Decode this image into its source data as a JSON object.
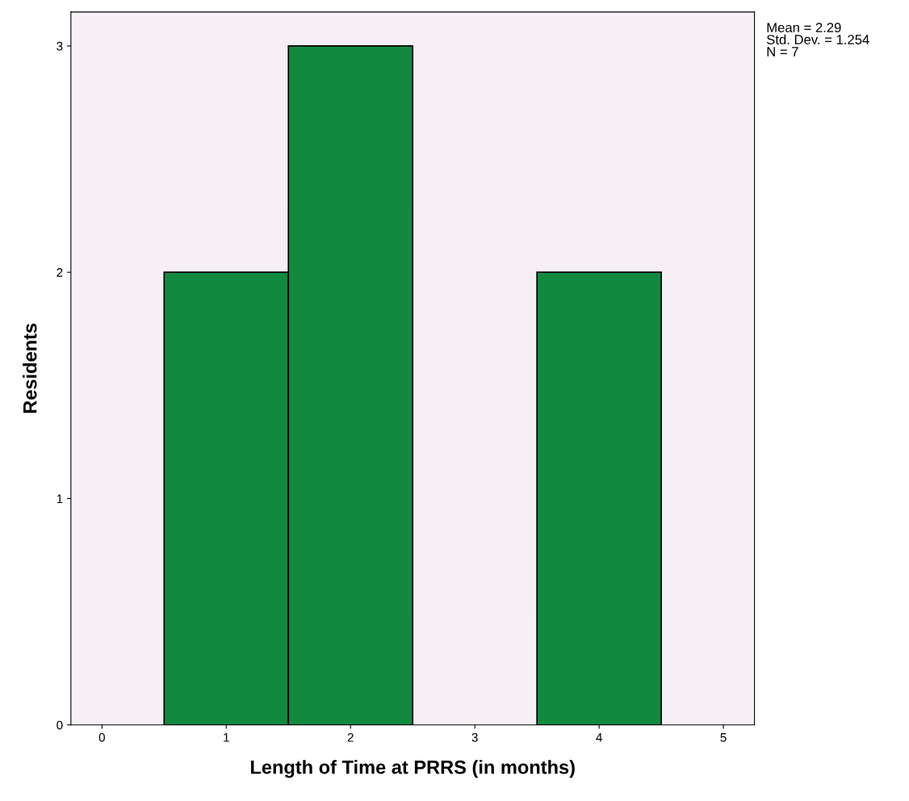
{
  "chart_data": {
    "type": "histogram",
    "xlabel": "Length of Time at PRRS (in months)",
    "ylabel": "Residents",
    "bins": [
      0.5,
      1.5,
      2.5,
      3.5,
      4.5
    ],
    "values": [
      2,
      3,
      0,
      2
    ],
    "color": "#118a40",
    "xlim": [
      -0.25,
      5.25
    ],
    "xticks": [
      0,
      1,
      2,
      3,
      4,
      5
    ],
    "ylim": [
      0,
      3.15
    ],
    "yticks": [
      0,
      1,
      2,
      3
    ],
    "grid": false,
    "annotations": [
      "Mean = 2.29\nStd. Dev. = 1.254\nN = 7"
    ]
  }
}
